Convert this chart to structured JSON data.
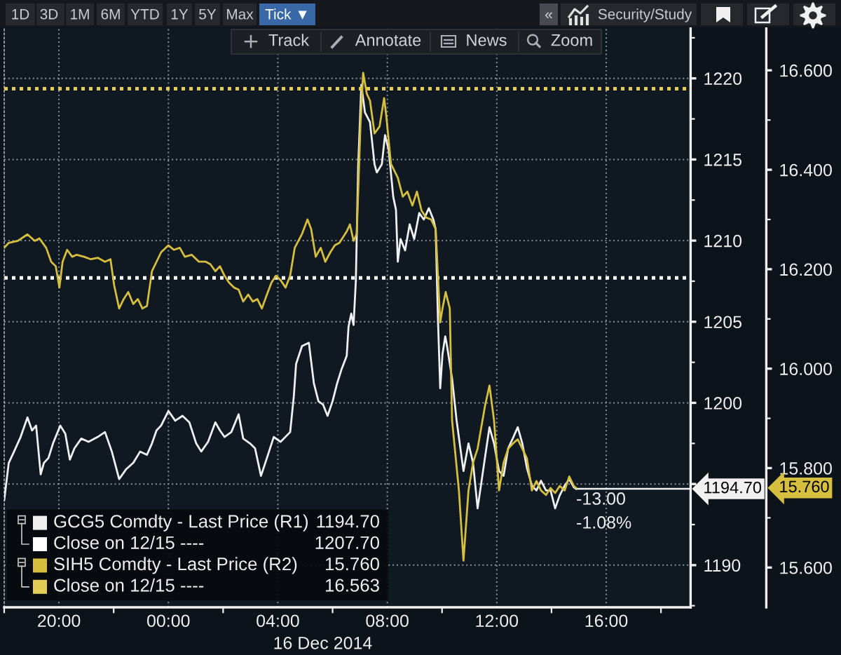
{
  "chart_data": {
    "type": "line",
    "xlim": [
      "2014-12-15T18:00",
      "2014-12-16T19:05"
    ],
    "xticks": [
      {
        "value": "2014-12-15T20:00",
        "label": "20:00"
      },
      {
        "value": "2014-12-16T00:00",
        "label": "00:00"
      },
      {
        "value": "2014-12-16T04:00",
        "label": "04:00"
      },
      {
        "value": "2014-12-16T08:00",
        "label": "08:00"
      },
      {
        "value": "2014-12-16T12:00",
        "label": "12:00"
      },
      {
        "value": "2014-12-16T16:00",
        "label": "16:00"
      }
    ],
    "xlabel": "16 Dec 2014",
    "ylim": [
      1187.4,
      1223.1
    ],
    "yticks": [
      1190,
      {
        "value": 1195,
        "label": null
      },
      1200,
      1205,
      1210,
      1215,
      1220
    ],
    "y2lim": [
      15.52,
      16.685
    ],
    "y2ticks": [
      {
        "value": 15.6,
        "label": "15.600"
      },
      {
        "value": 15.8,
        "label": "15.800"
      },
      {
        "value": 16.0,
        "label": "16.000"
      },
      {
        "value": 16.2,
        "label": "16.200"
      },
      {
        "value": 16.4,
        "label": "16.400"
      },
      {
        "value": 16.6,
        "label": "16.600"
      }
    ],
    "grid": true,
    "legend": "bottom left",
    "series": [
      {
        "name": "GCG5 Comdty - Last Price (R1)",
        "color": "#f0f0f0",
        "axis": "y",
        "x": [
          "2014-12-15T18:00",
          "2014-12-15T18:10",
          "2014-12-15T18:20",
          "2014-12-15T18:36",
          "2014-12-15T18:51",
          "2014-12-15T19:01",
          "2014-12-15T19:10",
          "2014-12-15T19:20",
          "2014-12-15T19:27",
          "2014-12-15T19:37",
          "2014-12-15T19:47",
          "2014-12-15T20:03",
          "2014-12-15T20:14",
          "2014-12-15T20:24",
          "2014-12-15T20:34",
          "2014-12-15T20:49",
          "2014-12-15T21:05",
          "2014-12-15T21:25",
          "2014-12-15T21:41",
          "2014-12-15T21:56",
          "2014-12-15T22:12",
          "2014-12-15T22:27",
          "2014-12-15T22:43",
          "2014-12-15T22:58",
          "2014-12-15T23:13",
          "2014-12-15T23:24",
          "2014-12-15T23:34",
          "2014-12-15T23:44",
          "2014-12-16T00:00",
          "2014-12-16T00:15",
          "2014-12-16T00:31",
          "2014-12-16T00:46",
          "2014-12-16T01:01",
          "2014-12-16T01:12",
          "2014-12-16T01:27",
          "2014-12-16T01:43",
          "2014-12-16T01:53",
          "2014-12-16T02:03",
          "2014-12-16T02:18",
          "2014-12-16T02:34",
          "2014-12-16T02:44",
          "2014-12-16T02:59",
          "2014-12-16T03:10",
          "2014-12-16T03:23",
          "2014-12-16T03:36",
          "2014-12-16T03:51",
          "2014-12-16T04:06",
          "2014-12-16T04:27",
          "2014-12-16T04:35",
          "2014-12-16T04:40",
          "2014-12-16T04:53",
          "2014-12-16T05:08",
          "2014-12-16T05:19",
          "2014-12-16T05:29",
          "2014-12-16T05:39",
          "2014-12-16T05:49",
          "2014-12-16T06:00",
          "2014-12-16T06:10",
          "2014-12-16T06:20",
          "2014-12-16T06:31",
          "2014-12-16T06:35",
          "2014-12-16T06:41",
          "2014-12-16T06:46",
          "2014-12-16T06:51",
          "2014-12-16T06:56",
          "2014-12-16T07:03",
          "2014-12-16T07:11",
          "2014-12-16T07:22",
          "2014-12-16T07:32",
          "2014-12-16T07:37",
          "2014-12-16T07:48",
          "2014-12-16T07:55",
          "2014-12-16T08:03",
          "2014-12-16T08:13",
          "2014-12-16T08:19",
          "2014-12-16T08:23",
          "2014-12-16T08:29",
          "2014-12-16T08:39",
          "2014-12-16T08:49",
          "2014-12-16T08:59",
          "2014-12-16T09:10",
          "2014-12-16T09:20",
          "2014-12-16T09:31",
          "2014-12-16T09:41",
          "2014-12-16T09:46",
          "2014-12-16T09:51",
          "2014-12-16T09:56",
          "2014-12-16T10:01",
          "2014-12-16T10:07",
          "2014-12-16T10:11",
          "2014-12-16T10:22",
          "2014-12-16T10:32",
          "2014-12-16T10:47",
          "2014-12-16T10:58",
          "2014-12-16T11:08",
          "2014-12-16T11:18",
          "2014-12-16T11:34",
          "2014-12-16T11:44",
          "2014-12-16T11:54",
          "2014-12-16T12:05",
          "2014-12-16T12:15",
          "2014-12-16T12:25",
          "2014-12-16T12:35",
          "2014-12-16T12:46",
          "2014-12-16T12:56",
          "2014-12-16T13:06",
          "2014-12-16T13:17",
          "2014-12-16T13:27",
          "2014-12-16T13:37",
          "2014-12-16T13:48",
          "2014-12-16T13:58",
          "2014-12-16T14:08",
          "2014-12-16T14:18",
          "2014-12-16T14:29",
          "2014-12-16T14:39",
          "2014-12-16T14:49",
          "2014-12-16T14:54"
        ],
        "values": [
          1194.0,
          1196.3,
          1196.9,
          1197.9,
          1199.1,
          1198.3,
          1198.6,
          1195.6,
          1196.3,
          1196.6,
          1197.5,
          1198.6,
          1198.1,
          1196.5,
          1197.2,
          1197.8,
          1197.6,
          1197.9,
          1198.2,
          1197.0,
          1195.3,
          1195.9,
          1196.3,
          1197.0,
          1196.8,
          1197.5,
          1198.3,
          1198.6,
          1199.5,
          1198.9,
          1199.2,
          1198.8,
          1197.5,
          1197.0,
          1197.6,
          1198.8,
          1198.3,
          1197.9,
          1198.2,
          1199.3,
          1197.8,
          1197.5,
          1197.2,
          1195.5,
          1196.6,
          1197.9,
          1197.6,
          1198.2,
          1200.4,
          1202.4,
          1203.5,
          1203.7,
          1201.2,
          1200.1,
          1199.9,
          1199.2,
          1200.1,
          1201.2,
          1202.1,
          1202.9,
          1204.7,
          1205.5,
          1204.8,
          1207.5,
          1214.5,
          1219.6,
          1217.9,
          1217.3,
          1214.7,
          1214.2,
          1214.7,
          1216.5,
          1215.6,
          1212.7,
          1211.9,
          1208.7,
          1210.1,
          1209.4,
          1211.0,
          1210.1,
          1211.7,
          1211.3,
          1212.0,
          1211.3,
          1210.7,
          1205.2,
          1200.9,
          1203.0,
          1204.1,
          1203.5,
          1201.5,
          1198.9,
          1195.8,
          1197.5,
          1196.3,
          1193.5,
          1196.6,
          1198.5,
          1197.5,
          1195.8,
          1195.5,
          1197.2,
          1197.8,
          1198.5,
          1197.5,
          1196.0,
          1194.9,
          1194.6,
          1195.2,
          1194.6,
          1194.6,
          1193.5,
          1194.3,
          1194.9,
          1195.3,
          1194.8,
          1194.7
        ]
      },
      {
        "name": "SIH5 Comdty - Last Price (R2)",
        "color": "#d6bf3f",
        "axis": "y2",
        "x": [
          "2014-12-15T18:00",
          "2014-12-15T18:10",
          "2014-12-15T18:30",
          "2014-12-15T18:51",
          "2014-12-15T19:07",
          "2014-12-15T19:17",
          "2014-12-15T19:32",
          "2014-12-15T19:43",
          "2014-12-15T19:53",
          "2014-12-15T20:01",
          "2014-12-15T20:08",
          "2014-12-15T20:18",
          "2014-12-15T20:29",
          "2014-12-15T20:39",
          "2014-12-15T20:55",
          "2014-12-15T21:10",
          "2014-12-15T21:25",
          "2014-12-15T21:41",
          "2014-12-15T21:53",
          "2014-12-15T22:01",
          "2014-12-15T22:12",
          "2014-12-15T22:22",
          "2014-12-15T22:32",
          "2014-12-15T22:43",
          "2014-12-15T22:53",
          "2014-12-15T23:03",
          "2014-12-15T23:13",
          "2014-12-15T23:24",
          "2014-12-15T23:34",
          "2014-12-15T23:44",
          "2014-12-16T00:00",
          "2014-12-16T00:12",
          "2014-12-16T00:25",
          "2014-12-16T00:36",
          "2014-12-16T00:51",
          "2014-12-16T01:07",
          "2014-12-16T01:22",
          "2014-12-16T01:32",
          "2014-12-16T01:43",
          "2014-12-16T01:53",
          "2014-12-16T02:03",
          "2014-12-16T02:13",
          "2014-12-16T02:24",
          "2014-12-16T02:34",
          "2014-12-16T02:44",
          "2014-12-16T02:55",
          "2014-12-16T03:05",
          "2014-12-16T03:15",
          "2014-12-16T03:25",
          "2014-12-16T03:36",
          "2014-12-16T03:46",
          "2014-12-16T03:56",
          "2014-12-16T04:06",
          "2014-12-16T04:17",
          "2014-12-16T04:27",
          "2014-12-16T04:37",
          "2014-12-16T04:53",
          "2014-12-16T05:05",
          "2014-12-16T05:13",
          "2014-12-16T05:23",
          "2014-12-16T05:34",
          "2014-12-16T05:44",
          "2014-12-16T05:55",
          "2014-12-16T06:05",
          "2014-12-16T06:15",
          "2014-12-16T06:31",
          "2014-12-16T06:38",
          "2014-12-16T06:46",
          "2014-12-16T06:53",
          "2014-12-16T07:01",
          "2014-12-16T07:07",
          "2014-12-16T07:15",
          "2014-12-16T07:22",
          "2014-12-16T07:32",
          "2014-12-16T07:43",
          "2014-12-16T07:53",
          "2014-12-16T07:58",
          "2014-12-16T08:08",
          "2014-12-16T08:23",
          "2014-12-16T08:34",
          "2014-12-16T08:44",
          "2014-12-16T08:55",
          "2014-12-16T09:05",
          "2014-12-16T09:15",
          "2014-12-16T09:25",
          "2014-12-16T09:36",
          "2014-12-16T09:46",
          "2014-12-16T09:51",
          "2014-12-16T09:56",
          "2014-12-16T10:01",
          "2014-12-16T10:08",
          "2014-12-16T10:17",
          "2014-12-16T10:22",
          "2014-12-16T10:37",
          "2014-12-16T10:47",
          "2014-12-16T10:58",
          "2014-12-16T11:08",
          "2014-12-16T11:18",
          "2014-12-16T11:34",
          "2014-12-16T11:44",
          "2014-12-16T11:54",
          "2014-12-16T12:05",
          "2014-12-16T12:15",
          "2014-12-16T12:25",
          "2014-12-16T12:35",
          "2014-12-16T12:46",
          "2014-12-16T12:56",
          "2014-12-16T13:06",
          "2014-12-16T13:17",
          "2014-12-16T13:27",
          "2014-12-16T13:37",
          "2014-12-16T13:48",
          "2014-12-16T13:58",
          "2014-12-16T14:08",
          "2014-12-16T14:18",
          "2014-12-16T14:29",
          "2014-12-16T14:39",
          "2014-12-16T14:49",
          "2014-12-16T14:54"
        ],
        "values": [
          16.243,
          16.253,
          16.257,
          16.27,
          16.257,
          16.262,
          16.243,
          16.215,
          16.206,
          16.163,
          16.215,
          16.239,
          16.225,
          16.229,
          16.225,
          16.22,
          16.223,
          16.215,
          16.22,
          16.168,
          16.121,
          16.14,
          16.154,
          16.13,
          16.14,
          16.121,
          16.126,
          16.196,
          16.215,
          16.234,
          16.248,
          16.239,
          16.243,
          16.225,
          16.229,
          16.215,
          16.215,
          16.21,
          16.196,
          16.206,
          16.187,
          16.173,
          16.163,
          16.159,
          16.135,
          16.149,
          16.135,
          16.14,
          16.121,
          16.149,
          16.173,
          16.187,
          16.178,
          16.163,
          16.187,
          16.243,
          16.271,
          16.3,
          16.281,
          16.225,
          16.243,
          16.215,
          16.234,
          16.248,
          16.253,
          16.276,
          16.29,
          16.257,
          16.271,
          16.487,
          16.595,
          16.553,
          16.539,
          16.473,
          16.487,
          16.544,
          16.506,
          16.412,
          16.384,
          16.346,
          16.356,
          16.328,
          16.356,
          16.318,
          16.304,
          16.3,
          16.281,
          16.187,
          16.093,
          16.121,
          16.154,
          16.121,
          15.896,
          15.755,
          15.614,
          15.755,
          15.811,
          15.839,
          15.924,
          15.966,
          15.896,
          15.755,
          15.811,
          15.839,
          15.849,
          15.858,
          15.839,
          15.82,
          15.755,
          15.774,
          15.755,
          15.746,
          15.76,
          15.75,
          15.764,
          15.755,
          15.783,
          15.764,
          15.76
        ]
      }
    ],
    "ref_lines": [
      {
        "axis": "y",
        "value": 1207.7,
        "label": "Close on 12/15 ----",
        "color": "#ffffff",
        "line_style": "dotted"
      },
      {
        "axis": "y2",
        "value": 16.563,
        "label": "Close on 12/15 ----",
        "color": "#e3cc55",
        "line_style": "dotted"
      }
    ],
    "annotations": [
      "1194.70",
      "1207.70",
      "15.760",
      "16.563",
      "-13.00",
      "-1.08%",
      {
        "text": "1194.70",
        "x": "2014-12-16T14:54",
        "y": 1194.7
      },
      "15.760",
      "1D",
      "3D",
      "1M",
      "6M",
      "YTD",
      "1Y",
      "5Y",
      "Max",
      "Tick ▼",
      "«",
      "Security/Study",
      "Track",
      "Annotate",
      "News",
      "Zoom"
    ]
  }
}
